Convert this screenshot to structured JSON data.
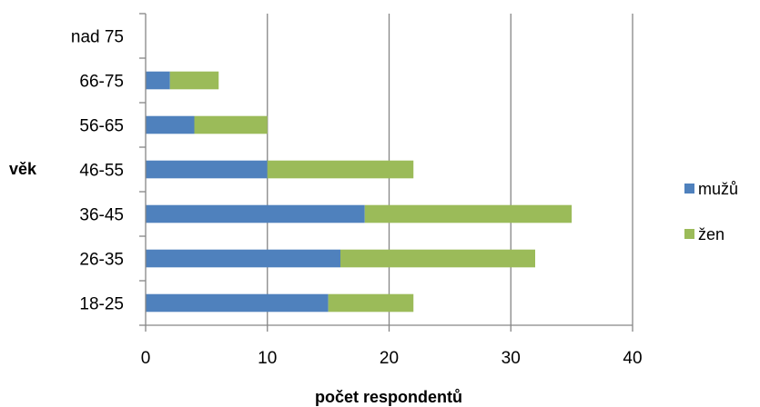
{
  "chart_data": {
    "type": "bar",
    "orientation": "horizontal",
    "stacked": true,
    "categories": [
      "18-25",
      "26-35",
      "36-45",
      "46-55",
      "56-65",
      "66-75",
      "nad 75"
    ],
    "series": [
      {
        "name": "mužů",
        "values": [
          15,
          16,
          18,
          10,
          4,
          2,
          0
        ],
        "color": "#4F81BD"
      },
      {
        "name": "žen",
        "values": [
          7,
          16,
          17,
          12,
          6,
          4,
          0
        ],
        "color": "#9BBB59"
      }
    ],
    "xlabel": "počet respondentů",
    "ylabel": "věk",
    "xlim": [
      0,
      40
    ],
    "xticks": [
      "0",
      "10",
      "20",
      "30",
      "40"
    ],
    "grid": "vertical",
    "legend_position": "right"
  }
}
